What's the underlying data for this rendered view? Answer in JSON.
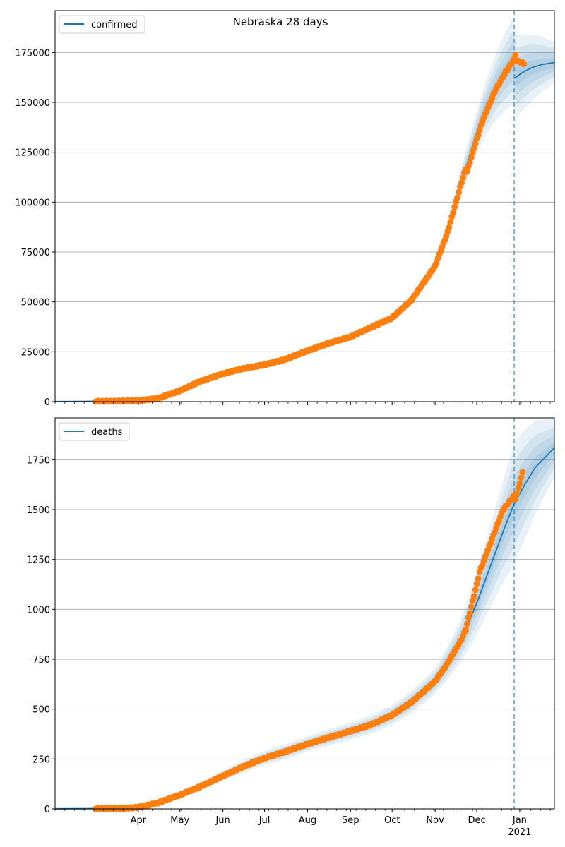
{
  "title": "Nebraska 28 days",
  "colors": {
    "model": "#1f77b4",
    "observed": "#ff7f0e",
    "band": "#1f77b4",
    "grid": "#b0b0b0"
  },
  "x_axis": {
    "start": "2020-02-01",
    "end": "2021-01-26",
    "month_ticks": [
      {
        "date": "2020-04-01",
        "label": "Apr"
      },
      {
        "date": "2020-05-01",
        "label": "May"
      },
      {
        "date": "2020-06-01",
        "label": "Jun"
      },
      {
        "date": "2020-07-01",
        "label": "Jul"
      },
      {
        "date": "2020-08-01",
        "label": "Aug"
      },
      {
        "date": "2020-09-01",
        "label": "Sep"
      },
      {
        "date": "2020-10-01",
        "label": "Oct"
      },
      {
        "date": "2020-11-01",
        "label": "Nov"
      },
      {
        "date": "2020-12-01",
        "label": "Dec"
      },
      {
        "date": "2021-01-01",
        "label": "Jan"
      }
    ],
    "year_label": {
      "date": "2021-01-01",
      "label": "2021"
    },
    "forecast_start": "2020-12-28"
  },
  "chart_data": [
    {
      "type": "line",
      "legend": "confirmed",
      "legend_position": "top-left",
      "grid": "y",
      "ylim": [
        0,
        196000
      ],
      "yticks": [
        0,
        25000,
        50000,
        75000,
        100000,
        125000,
        150000,
        175000
      ],
      "model": [
        [
          "2020-02-01",
          0
        ],
        [
          "2020-03-15",
          200
        ],
        [
          "2020-04-01",
          500
        ],
        [
          "2020-04-15",
          1600
        ],
        [
          "2020-05-01",
          5500
        ],
        [
          "2020-05-15",
          10000
        ],
        [
          "2020-06-01",
          14000
        ],
        [
          "2020-06-15",
          16500
        ],
        [
          "2020-07-01",
          18500
        ],
        [
          "2020-07-15",
          21000
        ],
        [
          "2020-08-01",
          25500
        ],
        [
          "2020-08-15",
          29000
        ],
        [
          "2020-09-01",
          32500
        ],
        [
          "2020-09-15",
          37000
        ],
        [
          "2020-10-01",
          42000
        ],
        [
          "2020-10-15",
          51000
        ],
        [
          "2020-11-01",
          68000
        ],
        [
          "2020-11-10",
          85000
        ],
        [
          "2020-11-20",
          110000
        ],
        [
          "2020-11-28",
          128000
        ],
        [
          "2020-12-05",
          143000
        ],
        [
          "2020-12-14",
          157000
        ],
        [
          "2020-12-22",
          166000
        ],
        [
          "2020-12-28",
          171500
        ]
      ],
      "forecast": [
        [
          "2020-12-28",
          162000
        ],
        [
          "2021-01-03",
          165000
        ],
        [
          "2021-01-10",
          167500
        ],
        [
          "2021-01-17",
          169000
        ],
        [
          "2021-01-26",
          170000
        ]
      ],
      "band_widths": [
        [
          "2020-02-01",
          0.03
        ],
        [
          "2020-05-01",
          0.07
        ],
        [
          "2020-08-01",
          0.06
        ],
        [
          "2020-11-01",
          0.06
        ],
        [
          "2020-12-01",
          0.08
        ],
        [
          "2020-12-28",
          0.13
        ],
        [
          "2021-01-26",
          0.06
        ]
      ],
      "observed_end": [
        "2021-01-04",
        169500
      ],
      "observed_shape": [
        [
          "2020-11-23",
          0,
          0
        ],
        [
          "2020-11-24",
          6000,
          5000
        ],
        [
          "2020-12-28",
          0,
          0
        ],
        [
          "2020-12-29",
          3000,
          4000
        ]
      ]
    },
    {
      "type": "line",
      "legend": "deaths",
      "legend_position": "top-left",
      "grid": "y",
      "ylim": [
        0,
        1960
      ],
      "yticks": [
        0,
        250,
        500,
        750,
        1000,
        1250,
        1500,
        1750
      ],
      "model": [
        [
          "2020-02-01",
          0
        ],
        [
          "2020-03-20",
          2
        ],
        [
          "2020-04-01",
          8
        ],
        [
          "2020-04-15",
          30
        ],
        [
          "2020-05-01",
          70
        ],
        [
          "2020-05-15",
          110
        ],
        [
          "2020-06-01",
          165
        ],
        [
          "2020-06-15",
          210
        ],
        [
          "2020-07-01",
          255
        ],
        [
          "2020-07-15",
          285
        ],
        [
          "2020-08-01",
          325
        ],
        [
          "2020-08-15",
          355
        ],
        [
          "2020-09-01",
          390
        ],
        [
          "2020-09-15",
          420
        ],
        [
          "2020-10-01",
          470
        ],
        [
          "2020-10-15",
          535
        ],
        [
          "2020-11-01",
          640
        ],
        [
          "2020-11-10",
          730
        ],
        [
          "2020-11-20",
          850
        ],
        [
          "2020-12-01",
          1030
        ],
        [
          "2020-12-10",
          1200
        ],
        [
          "2020-12-20",
          1390
        ],
        [
          "2020-12-28",
          1530
        ]
      ],
      "forecast": [
        [
          "2020-12-28",
          1530
        ],
        [
          "2021-01-05",
          1630
        ],
        [
          "2021-01-12",
          1710
        ],
        [
          "2021-01-19",
          1760
        ],
        [
          "2021-01-26",
          1810
        ]
      ],
      "band_widths": [
        [
          "2020-02-01",
          0.05
        ],
        [
          "2020-05-01",
          0.18
        ],
        [
          "2020-08-01",
          0.12
        ],
        [
          "2020-11-01",
          0.1
        ],
        [
          "2020-12-01",
          0.15
        ],
        [
          "2020-12-28",
          0.2
        ],
        [
          "2021-01-26",
          0.08
        ]
      ],
      "observed_end": [
        "2021-01-03",
        1685
      ],
      "observed_shape": [
        [
          "2020-11-23",
          0,
          0
        ],
        [
          "2020-12-03",
          120,
          0
        ],
        [
          "2020-12-20",
          110,
          0
        ],
        [
          "2020-12-28",
          40,
          0
        ]
      ]
    }
  ]
}
